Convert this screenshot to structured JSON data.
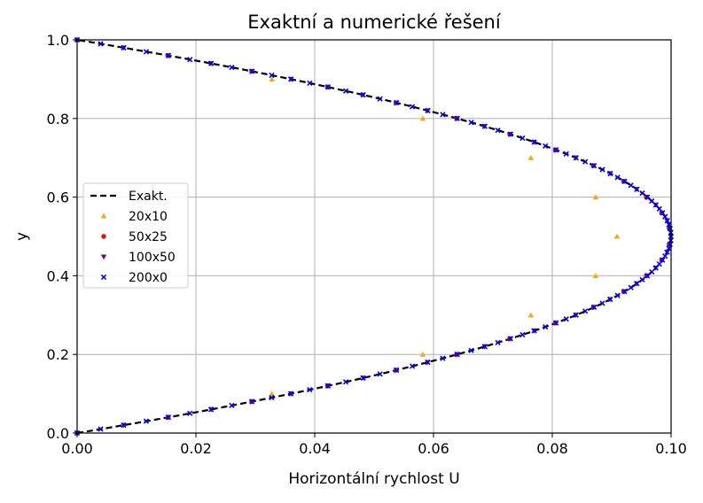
{
  "chart_data": {
    "type": "scatter",
    "title": "Exaktní a numerické řešení",
    "xlabel": "Horizontální rychlost U",
    "ylabel": "y",
    "xlim": [
      0.0,
      0.1
    ],
    "ylim": [
      0.0,
      1.0
    ],
    "x_ticks": [
      "0.00",
      "0.02",
      "0.04",
      "0.06",
      "0.08",
      "0.10"
    ],
    "y_ticks": [
      "0.0",
      "0.2",
      "0.4",
      "0.6",
      "0.8",
      "1.0"
    ],
    "grid": true,
    "legend_position": "center-left",
    "exact": {
      "name": "Exakt.",
      "color": "#000000",
      "style": "dashed",
      "formula": "U = 0.4 * y * (1 - y)"
    },
    "series": [
      {
        "name": "20x10",
        "color": "#ffa500",
        "marker": "triangle-up",
        "points": [
          [
            0.0,
            0.0
          ],
          [
            0.0328,
            0.1
          ],
          [
            0.0582,
            0.2
          ],
          [
            0.0764,
            0.3
          ],
          [
            0.0873,
            0.4
          ],
          [
            0.0909,
            0.5
          ],
          [
            0.0873,
            0.6
          ],
          [
            0.0764,
            0.7
          ],
          [
            0.0582,
            0.8
          ],
          [
            0.0328,
            0.9
          ],
          [
            0.0,
            1.0
          ]
        ]
      },
      {
        "name": "50x25",
        "color": "#ff0000",
        "marker": "circle",
        "n": 25
      },
      {
        "name": "100x50",
        "color": "#800080",
        "marker": "triangle-down",
        "n": 50
      },
      {
        "name": "200x0",
        "color": "#0000ff",
        "marker": "x",
        "n": 100
      }
    ]
  }
}
